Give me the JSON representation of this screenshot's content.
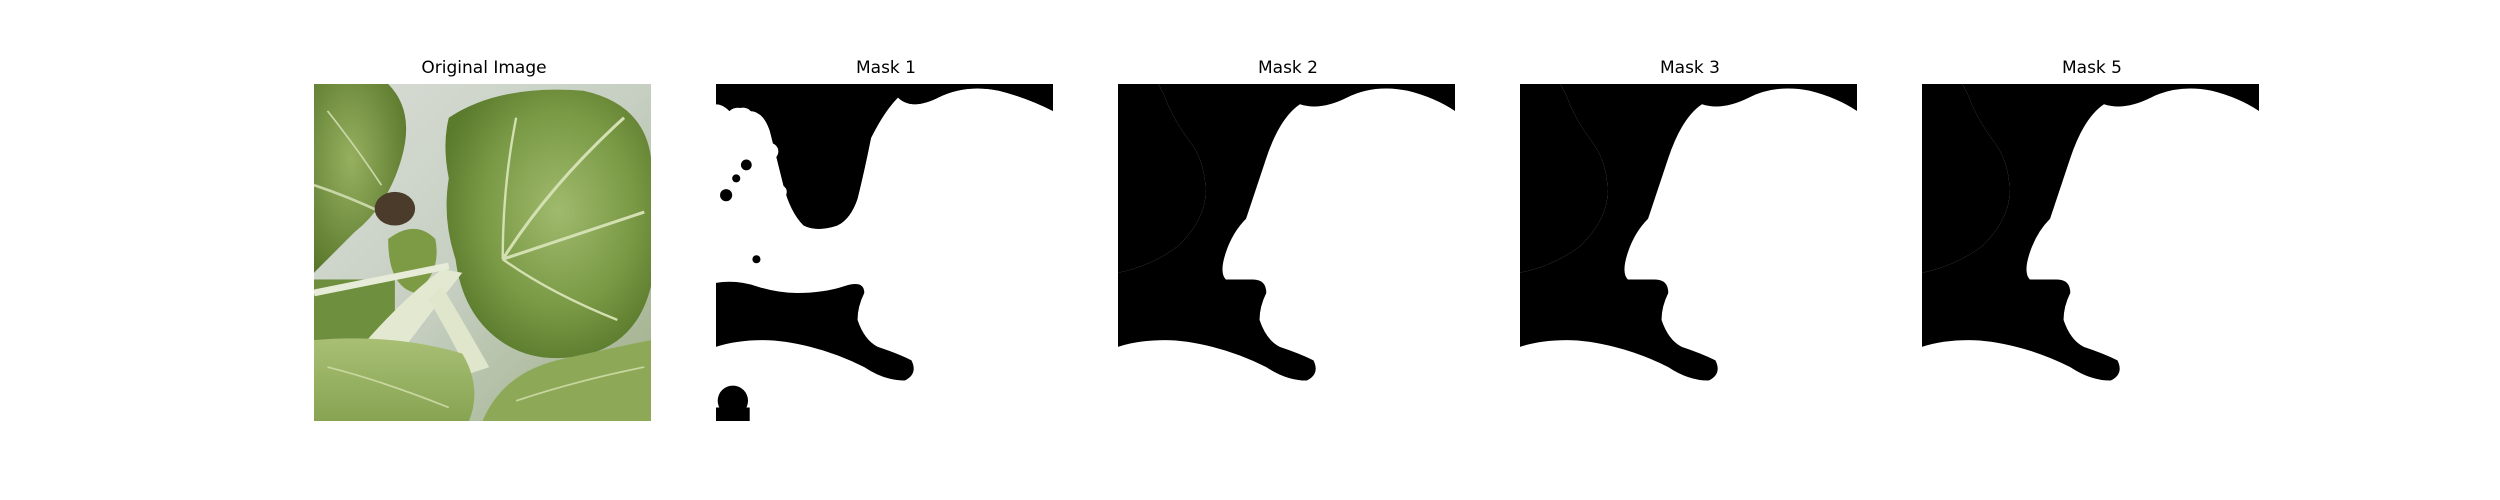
{
  "panels": [
    {
      "title": "Original Image",
      "kind": "photo"
    },
    {
      "title": "Mask 1",
      "kind": "mask"
    },
    {
      "title": "Mask 2",
      "kind": "mask"
    },
    {
      "title": "Mask 3",
      "kind": "mask"
    },
    {
      "title": "Mask 5",
      "kind": "mask"
    }
  ],
  "colors": {
    "background": "#ffffff",
    "mask_foreground": "#ffffff",
    "mask_background": "#000000",
    "leaf_dark": "#5b7a2e",
    "leaf_mid": "#7e9e4c",
    "leaf_light": "#a9bf77",
    "stem": "#e2e8cf",
    "sky_gray": "#cfd6cd"
  }
}
